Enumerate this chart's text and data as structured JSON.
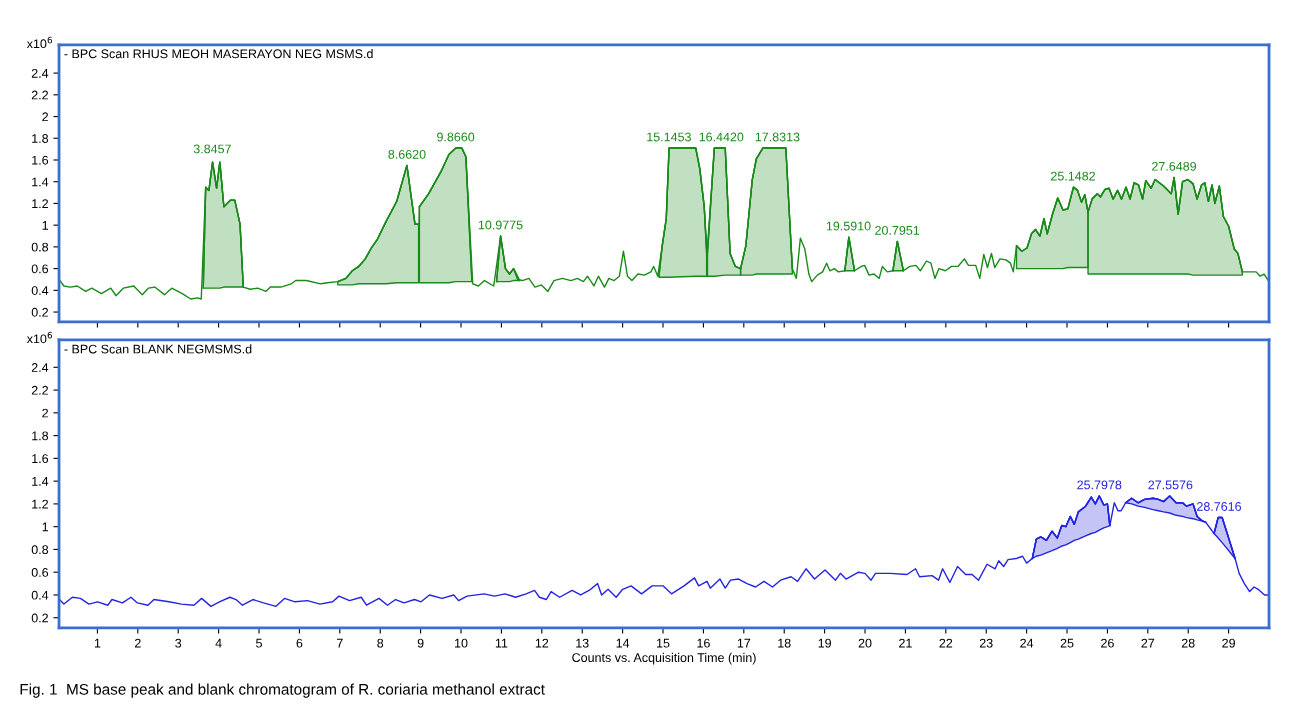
{
  "chart_data": [
    {
      "type": "line",
      "title": "- BPC Scan RHUS MEOH MASERAYON NEG MSMS.d",
      "ylabel": "x10$^{6}$",
      "xlim": [
        0.05,
        30.0
      ],
      "xticks": [
        1,
        2,
        3,
        4,
        5,
        6,
        7,
        8,
        9,
        10,
        11,
        12,
        13,
        14,
        15,
        16,
        17,
        18,
        19,
        20,
        21,
        22,
        23,
        24,
        25,
        26,
        27,
        28,
        29
      ],
      "ylim": [
        0.11,
        2.66
      ],
      "yticks": [
        0.2,
        0.4,
        0.6,
        0.8,
        1,
        1.2,
        1.4,
        1.6,
        1.8,
        2,
        2.2,
        2.4
      ],
      "tick_labels": "y",
      "grid": false,
      "legend": false,
      "series": [
        {
          "color": "#1a8a1a",
          "x": [
            0.05,
            0.17,
            0.33,
            0.5,
            0.71,
            0.86,
            1.1,
            1.33,
            1.46,
            1.64,
            1.9,
            2.11,
            2.26,
            2.42,
            2.66,
            2.84,
            3.1,
            3.31,
            3.47,
            3.57,
            3.68,
            3.76,
            3.85,
            3.95,
            4.03,
            4.13,
            4.29,
            4.4,
            4.53,
            4.61,
            4.78,
            4.97,
            5.17,
            5.28,
            5.54,
            5.8,
            5.91,
            6.17,
            6.53,
            6.69,
            6.95,
            7.15,
            7.31,
            7.47,
            7.63,
            7.78,
            7.93,
            8.14,
            8.41,
            8.66,
            8.86,
            8.96,
            8.97,
            9.2,
            9.5,
            9.7,
            9.87,
            10.02,
            10.12,
            10.29,
            10.43,
            10.58,
            10.81,
            10.98,
            11.1,
            11.2,
            11.3,
            11.4,
            11.52,
            11.68,
            11.83,
            11.99,
            12.15,
            12.3,
            12.51,
            12.72,
            12.88,
            13.03,
            13.13,
            13.29,
            13.4,
            13.55,
            13.66,
            13.79,
            13.92,
            14.02,
            14.12,
            14.23,
            14.38,
            14.54,
            14.7,
            14.77,
            14.87,
            14.98,
            15.08,
            15.15,
            15.81,
            15.91,
            16.02,
            16.09,
            16.27,
            16.54,
            16.66,
            16.79,
            16.92,
            17.05,
            17.21,
            17.31,
            17.47,
            18.04,
            18.2,
            18.3,
            18.4,
            18.51,
            18.61,
            18.68,
            18.82,
            18.95,
            19.05,
            19.13,
            19.24,
            19.34,
            19.5,
            19.6,
            19.74,
            19.91,
            19.99,
            20.1,
            20.22,
            20.35,
            20.43,
            20.55,
            20.69,
            20.8,
            20.95,
            21.11,
            21.26,
            21.37,
            21.52,
            21.63,
            21.73,
            21.83,
            21.99,
            22.14,
            22.3,
            22.46,
            22.56,
            22.74,
            22.84,
            22.94,
            23.03,
            23.13,
            23.21,
            23.34,
            23.49,
            23.6,
            23.67,
            23.75,
            23.88,
            24.01,
            24.12,
            24.22,
            24.33,
            24.43,
            24.51,
            24.64,
            24.77,
            24.9,
            25.02,
            25.16,
            25.26,
            25.36,
            25.44,
            25.52,
            25.62,
            25.75,
            25.83,
            25.94,
            26.04,
            26.14,
            26.25,
            26.35,
            26.46,
            26.56,
            26.66,
            26.77,
            26.87,
            26.95,
            27.08,
            27.18,
            27.39,
            27.58,
            27.65,
            27.75,
            27.86,
            27.99,
            28.12,
            28.22,
            28.33,
            28.41,
            28.5,
            28.59,
            28.66,
            28.77,
            28.87,
            29.0,
            29.14,
            29.23,
            29.34,
            29.52,
            29.68,
            29.78,
            29.88,
            29.98
          ],
          "values": [
            0.5,
            0.44,
            0.43,
            0.44,
            0.39,
            0.42,
            0.37,
            0.42,
            0.35,
            0.42,
            0.44,
            0.36,
            0.42,
            0.43,
            0.36,
            0.42,
            0.37,
            0.32,
            0.33,
            0.32,
            1.35,
            1.32,
            1.58,
            1.34,
            1.58,
            1.17,
            1.23,
            1.23,
            1.01,
            0.43,
            0.41,
            0.42,
            0.39,
            0.43,
            0.43,
            0.46,
            0.49,
            0.49,
            0.46,
            0.47,
            0.48,
            0.51,
            0.58,
            0.62,
            0.69,
            0.79,
            0.87,
            1.03,
            1.22,
            1.55,
            1.01,
            1.01,
            1.17,
            1.29,
            1.49,
            1.65,
            1.71,
            1.71,
            1.63,
            0.46,
            0.44,
            0.49,
            0.44,
            0.9,
            0.6,
            0.55,
            0.6,
            0.5,
            0.49,
            0.51,
            0.43,
            0.45,
            0.39,
            0.49,
            0.51,
            0.49,
            0.51,
            0.48,
            0.53,
            0.44,
            0.53,
            0.43,
            0.51,
            0.49,
            0.53,
            0.76,
            0.53,
            0.49,
            0.55,
            0.54,
            0.57,
            0.62,
            0.53,
            0.81,
            1.06,
            1.71,
            1.71,
            1.52,
            1.17,
            0.74,
            1.71,
            1.71,
            0.74,
            0.62,
            0.6,
            0.81,
            1.42,
            1.61,
            1.71,
            1.71,
            0.6,
            0.51,
            0.88,
            0.78,
            0.55,
            0.48,
            0.54,
            0.57,
            0.65,
            0.58,
            0.6,
            0.57,
            0.58,
            0.89,
            0.58,
            0.62,
            0.63,
            0.54,
            0.55,
            0.51,
            0.62,
            0.57,
            0.58,
            0.85,
            0.58,
            0.62,
            0.63,
            0.58,
            0.67,
            0.65,
            0.51,
            0.6,
            0.58,
            0.62,
            0.62,
            0.69,
            0.63,
            0.63,
            0.51,
            0.73,
            0.61,
            0.74,
            0.61,
            0.69,
            0.68,
            0.65,
            0.57,
            0.81,
            0.76,
            0.79,
            0.92,
            0.96,
            0.9,
            1.06,
            0.92,
            1.1,
            1.25,
            1.14,
            1.15,
            1.35,
            1.32,
            1.21,
            1.28,
            1.12,
            1.24,
            1.29,
            1.26,
            1.33,
            1.34,
            1.24,
            1.32,
            1.24,
            1.35,
            1.24,
            1.39,
            1.37,
            1.24,
            1.41,
            1.34,
            1.42,
            1.36,
            1.29,
            1.44,
            1.1,
            1.4,
            1.42,
            1.38,
            1.24,
            1.37,
            1.39,
            1.22,
            1.37,
            1.2,
            1.36,
            1.08,
            0.99,
            0.78,
            0.74,
            0.57,
            0.57,
            0.57,
            0.53,
            0.55,
            0.49
          ]
        },
        {
          "type": "line",
          "color": "#1a8a1a",
          "x": [
            3.62,
            3.68,
            3.76,
            3.85,
            3.95,
            4.03,
            4.13,
            4.29,
            4.4,
            4.53,
            4.61
          ],
          "values": [
            0.42,
            1.35,
            1.32,
            1.58,
            1.34,
            1.58,
            1.17,
            1.23,
            1.23,
            1.01,
            0.43
          ],
          "upper": [
            0.42,
            1.35,
            1.32,
            1.58,
            1.34,
            1.58,
            1.17,
            1.23,
            1.23,
            1.01,
            0.43
          ],
          "lower": [
            0.42,
            0.42,
            0.42,
            0.42,
            0.42,
            0.42,
            0.43,
            0.43,
            0.43,
            0.43,
            0.43
          ]
        },
        {
          "type": "line",
          "color": "#1a8a1a",
          "x": [
            6.95,
            7.15,
            7.31,
            7.47,
            7.63,
            7.78,
            7.93,
            8.14,
            8.41,
            8.66,
            8.86,
            8.95
          ],
          "values": [
            0.48,
            0.51,
            0.58,
            0.62,
            0.69,
            0.79,
            0.87,
            1.03,
            1.22,
            1.55,
            1.01,
            1.01
          ],
          "upper": [
            0.48,
            0.51,
            0.58,
            0.62,
            0.69,
            0.79,
            0.87,
            1.03,
            1.22,
            1.55,
            1.01,
            1.01
          ],
          "lower": [
            0.45,
            0.45,
            0.45,
            0.46,
            0.46,
            0.46,
            0.46,
            0.46,
            0.47,
            0.47,
            0.47,
            0.47
          ]
        },
        {
          "type": "line",
          "color": "#1a8a1a",
          "x": [
            8.97,
            9.2,
            9.5,
            9.7,
            9.87,
            10.02,
            10.12,
            10.27
          ],
          "values": [
            1.17,
            1.29,
            1.49,
            1.65,
            1.71,
            1.71,
            1.63,
            0.48
          ],
          "upper": [
            1.17,
            1.29,
            1.49,
            1.65,
            1.71,
            1.71,
            1.63,
            0.48
          ],
          "lower": [
            0.47,
            0.47,
            0.47,
            0.47,
            0.48,
            0.48,
            0.48,
            0.48
          ]
        },
        {
          "type": "line",
          "color": "#1a8a1a",
          "x": [
            10.88,
            10.98,
            11.1,
            11.2,
            11.3,
            11.45
          ],
          "values": [
            0.48,
            0.9,
            0.6,
            0.55,
            0.6,
            0.49
          ],
          "upper": [
            0.48,
            0.9,
            0.6,
            0.55,
            0.6,
            0.49
          ],
          "lower": [
            0.48,
            0.48,
            0.48,
            0.48,
            0.49,
            0.49
          ]
        },
        {
          "type": "line",
          "color": "#1a8a1a",
          "x": [
            14.9,
            14.98,
            15.08,
            15.15,
            15.81,
            15.91,
            16.02,
            16.08
          ],
          "values": [
            0.53,
            0.81,
            1.06,
            1.71,
            1.71,
            1.52,
            1.17,
            0.74
          ],
          "upper": [
            0.53,
            0.81,
            1.06,
            1.71,
            1.71,
            1.52,
            1.17,
            0.74
          ],
          "lower": [
            0.52,
            0.52,
            0.52,
            0.52,
            0.53,
            0.53,
            0.53,
            0.53
          ]
        },
        {
          "type": "line",
          "color": "#1a8a1a",
          "x": [
            16.1,
            16.27,
            16.54,
            16.66,
            16.79,
            16.92
          ],
          "values": [
            0.74,
            1.71,
            1.71,
            0.74,
            0.62,
            0.6
          ],
          "upper": [
            0.74,
            1.71,
            1.71,
            0.74,
            0.62,
            0.6
          ],
          "lower": [
            0.53,
            0.53,
            0.54,
            0.54,
            0.54,
            0.54
          ]
        },
        {
          "type": "line",
          "color": "#1a8a1a",
          "x": [
            16.92,
            17.05,
            17.21,
            17.31,
            17.47,
            18.04,
            18.2
          ],
          "values": [
            0.6,
            0.81,
            1.42,
            1.61,
            1.71,
            1.71,
            0.6
          ],
          "upper": [
            0.6,
            0.81,
            1.42,
            1.61,
            1.71,
            1.71,
            0.6
          ],
          "lower": [
            0.54,
            0.54,
            0.54,
            0.55,
            0.55,
            0.55,
            0.55
          ]
        },
        {
          "type": "line",
          "color": "#1a8a1a",
          "x": [
            19.5,
            19.6,
            19.74
          ],
          "values": [
            0.58,
            0.89,
            0.58
          ],
          "upper": [
            0.58,
            0.89,
            0.58
          ],
          "lower": [
            0.58,
            0.58,
            0.58
          ]
        },
        {
          "type": "line",
          "color": "#1a8a1a",
          "x": [
            20.69,
            20.8,
            20.95
          ],
          "values": [
            0.58,
            0.85,
            0.58
          ],
          "upper": [
            0.58,
            0.85,
            0.58
          ],
          "lower": [
            0.58,
            0.58,
            0.58
          ]
        },
        {
          "type": "line",
          "color": "#1a8a1a",
          "x": [
            23.75,
            23.88,
            24.01,
            24.12,
            24.22,
            24.33,
            24.43,
            24.51,
            24.64,
            24.77,
            24.9,
            25.02,
            25.16,
            25.26,
            25.36,
            25.44,
            25.52
          ],
          "values": [
            0.81,
            0.76,
            0.79,
            0.92,
            0.96,
            0.9,
            1.06,
            0.92,
            1.1,
            1.25,
            1.14,
            1.15,
            1.35,
            1.32,
            1.21,
            1.28,
            1.12
          ],
          "upper": [
            0.81,
            0.76,
            0.79,
            0.92,
            0.96,
            0.9,
            1.06,
            0.92,
            1.1,
            1.25,
            1.14,
            1.15,
            1.35,
            1.32,
            1.21,
            1.28,
            1.12
          ],
          "lower": [
            0.6,
            0.6,
            0.6,
            0.6,
            0.6,
            0.6,
            0.6,
            0.6,
            0.6,
            0.6,
            0.6,
            0.61,
            0.61,
            0.61,
            0.61,
            0.61,
            0.61
          ]
        },
        {
          "type": "line",
          "color": "#1a8a1a",
          "x": [
            25.52,
            25.62,
            25.75,
            25.83,
            25.94,
            26.04,
            26.14,
            26.25,
            26.35,
            26.46,
            26.56,
            26.66,
            26.77,
            26.87,
            26.95,
            27.08,
            27.18,
            27.39,
            27.58,
            27.65,
            27.75,
            27.86,
            27.99,
            28.12,
            28.22,
            28.33,
            28.41,
            28.5,
            28.59,
            28.66,
            28.77,
            28.87,
            29.0,
            29.14,
            29.23,
            29.34
          ],
          "values": [
            1.12,
            1.24,
            1.29,
            1.26,
            1.33,
            1.34,
            1.24,
            1.32,
            1.24,
            1.35,
            1.24,
            1.39,
            1.37,
            1.24,
            1.41,
            1.34,
            1.42,
            1.36,
            1.29,
            1.44,
            1.1,
            1.4,
            1.42,
            1.38,
            1.24,
            1.37,
            1.39,
            1.22,
            1.37,
            1.2,
            1.36,
            1.08,
            0.99,
            0.78,
            0.74,
            0.57
          ],
          "upper": [
            1.12,
            1.24,
            1.29,
            1.26,
            1.33,
            1.34,
            1.24,
            1.32,
            1.24,
            1.35,
            1.24,
            1.39,
            1.37,
            1.24,
            1.41,
            1.34,
            1.42,
            1.36,
            1.29,
            1.44,
            1.1,
            1.4,
            1.42,
            1.38,
            1.24,
            1.37,
            1.39,
            1.22,
            1.37,
            1.2,
            1.36,
            1.08,
            0.99,
            0.78,
            0.74,
            0.57
          ],
          "lower": [
            0.55,
            0.55,
            0.55,
            0.55,
            0.55,
            0.55,
            0.55,
            0.55,
            0.55,
            0.55,
            0.55,
            0.55,
            0.55,
            0.55,
            0.55,
            0.55,
            0.55,
            0.55,
            0.55,
            0.55,
            0.55,
            0.55,
            0.55,
            0.54,
            0.54,
            0.54,
            0.54,
            0.54,
            0.54,
            0.54,
            0.54,
            0.54,
            0.54,
            0.54,
            0.54,
            0.54
          ]
        }
      ],
      "annotations": [
        {
          "text": "3.8457",
          "x": 3.8457,
          "y": 1.6
        },
        {
          "text": "8.6620",
          "x": 8.662,
          "y": 1.55
        },
        {
          "text": "9.8660",
          "x": 9.866,
          "y": 1.71
        },
        {
          "text": "10.9775",
          "x": 10.9775,
          "y": 0.9
        },
        {
          "text": "15.1453",
          "x": 15.1453,
          "y": 1.71
        },
        {
          "text": "16.4420",
          "x": 16.442,
          "y": 1.71
        },
        {
          "text": "17.8313",
          "x": 17.8313,
          "y": 1.71
        },
        {
          "text": "19.5910",
          "x": 19.591,
          "y": 0.89
        },
        {
          "text": "20.7951",
          "x": 20.7951,
          "y": 0.85
        },
        {
          "text": "25.1482",
          "x": 25.1482,
          "y": 1.35
        },
        {
          "text": "27.6489",
          "x": 27.6489,
          "y": 1.44
        }
      ]
    },
    {
      "type": "line",
      "title": "- BPC Scan BLANK NEGMSMS.d",
      "ylabel": "x10$^{6}$",
      "xlabel": "Counts vs. Acquisition Time (min)",
      "xlim": [
        0.05,
        30.0
      ],
      "xticks": [
        1,
        2,
        3,
        4,
        5,
        6,
        7,
        8,
        9,
        10,
        11,
        12,
        13,
        14,
        15,
        16,
        17,
        18,
        19,
        20,
        21,
        22,
        23,
        24,
        25,
        26,
        27,
        28,
        29
      ],
      "ylim": [
        0.11,
        2.64
      ],
      "yticks": [
        0.2,
        0.4,
        0.6,
        0.8,
        1,
        1.2,
        1.4,
        1.6,
        1.8,
        2,
        2.2,
        2.4
      ],
      "grid": false,
      "legend": false,
      "series": [
        {
          "color": "#2424e0",
          "x": [
            0.06,
            0.17,
            0.38,
            0.58,
            0.79,
            1.0,
            1.26,
            1.36,
            1.62,
            1.83,
            1.99,
            2.25,
            2.4,
            2.77,
            3.08,
            3.39,
            3.58,
            3.81,
            4.02,
            4.28,
            4.43,
            4.59,
            4.85,
            5.11,
            5.42,
            5.63,
            5.89,
            6.2,
            6.51,
            6.82,
            6.98,
            7.24,
            7.53,
            7.66,
            7.97,
            8.18,
            8.38,
            8.59,
            8.85,
            9.01,
            9.22,
            9.53,
            9.82,
            9.94,
            10.15,
            10.57,
            10.83,
            11.09,
            11.35,
            11.61,
            11.82,
            11.94,
            12.11,
            12.23,
            12.44,
            12.75,
            12.96,
            13.17,
            13.38,
            13.48,
            13.64,
            13.84,
            14.0,
            14.21,
            14.47,
            14.73,
            15.0,
            15.21,
            15.52,
            15.78,
            15.88,
            16.09,
            16.17,
            16.41,
            16.54,
            16.67,
            16.87,
            17.08,
            17.29,
            17.5,
            17.71,
            17.91,
            18.17,
            18.33,
            18.54,
            18.75,
            19.01,
            19.27,
            19.39,
            19.53,
            19.84,
            20.0,
            20.15,
            20.26,
            20.62,
            21.04,
            21.25,
            21.35,
            21.66,
            21.82,
            21.92,
            22.1,
            22.29,
            22.49,
            22.65,
            22.81,
            23.02,
            23.22,
            23.31,
            23.43,
            23.54,
            23.74,
            23.9,
            24.0,
            24.14,
            24.24,
            24.35,
            24.49,
            24.63,
            24.76,
            24.87,
            24.97,
            25.08,
            25.18,
            25.28,
            25.46,
            25.6,
            25.7,
            25.8,
            25.91,
            26.0,
            26.06,
            26.17,
            26.26,
            26.34,
            26.45,
            26.6,
            26.76,
            26.92,
            27.13,
            27.26,
            27.39,
            27.54,
            27.7,
            27.86,
            27.96,
            28.12,
            28.22,
            28.35,
            28.43,
            28.64,
            28.74,
            28.84,
            29.16,
            29.26,
            29.39,
            29.52,
            29.63,
            29.73,
            29.89,
            29.98
          ],
          "values": [
            0.36,
            0.32,
            0.38,
            0.37,
            0.32,
            0.34,
            0.31,
            0.36,
            0.33,
            0.38,
            0.33,
            0.31,
            0.36,
            0.34,
            0.32,
            0.31,
            0.37,
            0.3,
            0.34,
            0.38,
            0.36,
            0.31,
            0.36,
            0.33,
            0.3,
            0.37,
            0.34,
            0.35,
            0.32,
            0.34,
            0.39,
            0.35,
            0.38,
            0.31,
            0.37,
            0.31,
            0.36,
            0.33,
            0.36,
            0.34,
            0.4,
            0.37,
            0.4,
            0.35,
            0.39,
            0.41,
            0.39,
            0.41,
            0.38,
            0.41,
            0.44,
            0.38,
            0.36,
            0.43,
            0.38,
            0.44,
            0.4,
            0.44,
            0.5,
            0.4,
            0.45,
            0.38,
            0.45,
            0.48,
            0.41,
            0.48,
            0.48,
            0.41,
            0.48,
            0.55,
            0.48,
            0.52,
            0.46,
            0.54,
            0.46,
            0.53,
            0.54,
            0.5,
            0.47,
            0.52,
            0.47,
            0.53,
            0.56,
            0.52,
            0.63,
            0.54,
            0.62,
            0.53,
            0.59,
            0.54,
            0.6,
            0.59,
            0.53,
            0.59,
            0.59,
            0.58,
            0.63,
            0.56,
            0.57,
            0.53,
            0.63,
            0.51,
            0.65,
            0.58,
            0.58,
            0.53,
            0.67,
            0.63,
            0.7,
            0.65,
            0.71,
            0.72,
            0.74,
            0.68,
            0.72,
            0.89,
            0.91,
            0.88,
            0.96,
            0.9,
            1.01,
            1.0,
            1.09,
            1.02,
            1.13,
            1.18,
            1.26,
            1.2,
            1.27,
            1.19,
            1.2,
            1.01,
            1.21,
            1.14,
            1.14,
            1.21,
            1.25,
            1.21,
            1.24,
            1.25,
            1.24,
            1.22,
            1.27,
            1.21,
            1.21,
            1.18,
            1.2,
            1.09,
            1.05,
            1.04,
            0.94,
            1.08,
            1.08,
            0.72,
            0.59,
            0.5,
            0.43,
            0.47,
            0.45,
            0.4,
            0.4
          ]
        },
        {
          "type": "line",
          "color": "#2424e0",
          "x": [
            24.14,
            24.24,
            24.35,
            24.49,
            24.63,
            24.76,
            24.87,
            24.97,
            25.08,
            25.18,
            25.28,
            25.46,
            25.6,
            25.7,
            25.8,
            25.91,
            26.0,
            26.06
          ],
          "values": [
            0.72,
            0.89,
            0.91,
            0.88,
            0.96,
            0.9,
            1.01,
            1.0,
            1.09,
            1.02,
            1.13,
            1.18,
            1.26,
            1.2,
            1.27,
            1.19,
            1.2,
            1.01
          ],
          "upper": [
            0.72,
            0.89,
            0.91,
            0.88,
            0.96,
            0.9,
            1.01,
            1.0,
            1.09,
            1.02,
            1.13,
            1.18,
            1.26,
            1.2,
            1.27,
            1.19,
            1.2,
            1.01
          ],
          "lower": [
            0.72,
            0.74,
            0.75,
            0.77,
            0.79,
            0.81,
            0.83,
            0.84,
            0.86,
            0.88,
            0.89,
            0.92,
            0.94,
            0.95,
            0.97,
            0.99,
            1.0,
            1.01
          ]
        },
        {
          "type": "line",
          "color": "#2424e0",
          "x": [
            26.45,
            26.6,
            26.76,
            26.92,
            27.13,
            27.26,
            27.39,
            27.54,
            27.7,
            27.86,
            27.96,
            28.12,
            28.22,
            28.35,
            28.43
          ],
          "values": [
            1.21,
            1.25,
            1.21,
            1.24,
            1.25,
            1.24,
            1.22,
            1.27,
            1.21,
            1.21,
            1.18,
            1.2,
            1.09,
            1.05,
            1.04
          ],
          "upper": [
            1.21,
            1.25,
            1.21,
            1.24,
            1.25,
            1.24,
            1.22,
            1.27,
            1.21,
            1.21,
            1.18,
            1.2,
            1.09,
            1.05,
            1.04
          ],
          "lower": [
            1.21,
            1.2,
            1.18,
            1.17,
            1.15,
            1.14,
            1.13,
            1.12,
            1.1,
            1.09,
            1.08,
            1.07,
            1.06,
            1.05,
            1.04
          ]
        },
        {
          "type": "line",
          "color": "#2424e0",
          "x": [
            28.64,
            28.74,
            28.84,
            29.16
          ],
          "values": [
            0.94,
            1.08,
            1.08,
            0.72
          ],
          "upper": [
            0.94,
            1.08,
            1.08,
            0.72
          ],
          "lower": [
            0.94,
            0.9,
            0.86,
            0.72
          ]
        }
      ],
      "annotations": [
        {
          "text": "25.7978",
          "x": 25.7978,
          "y": 1.27
        },
        {
          "text": "27.5576",
          "x": 27.5576,
          "y": 1.27
        },
        {
          "text": "28.7616",
          "x": 28.7616,
          "y": 1.08
        },
        "Fig. 1  MS base peak and blank chromatogram of R. coriaria methanol extract"
      ]
    }
  ]
}
